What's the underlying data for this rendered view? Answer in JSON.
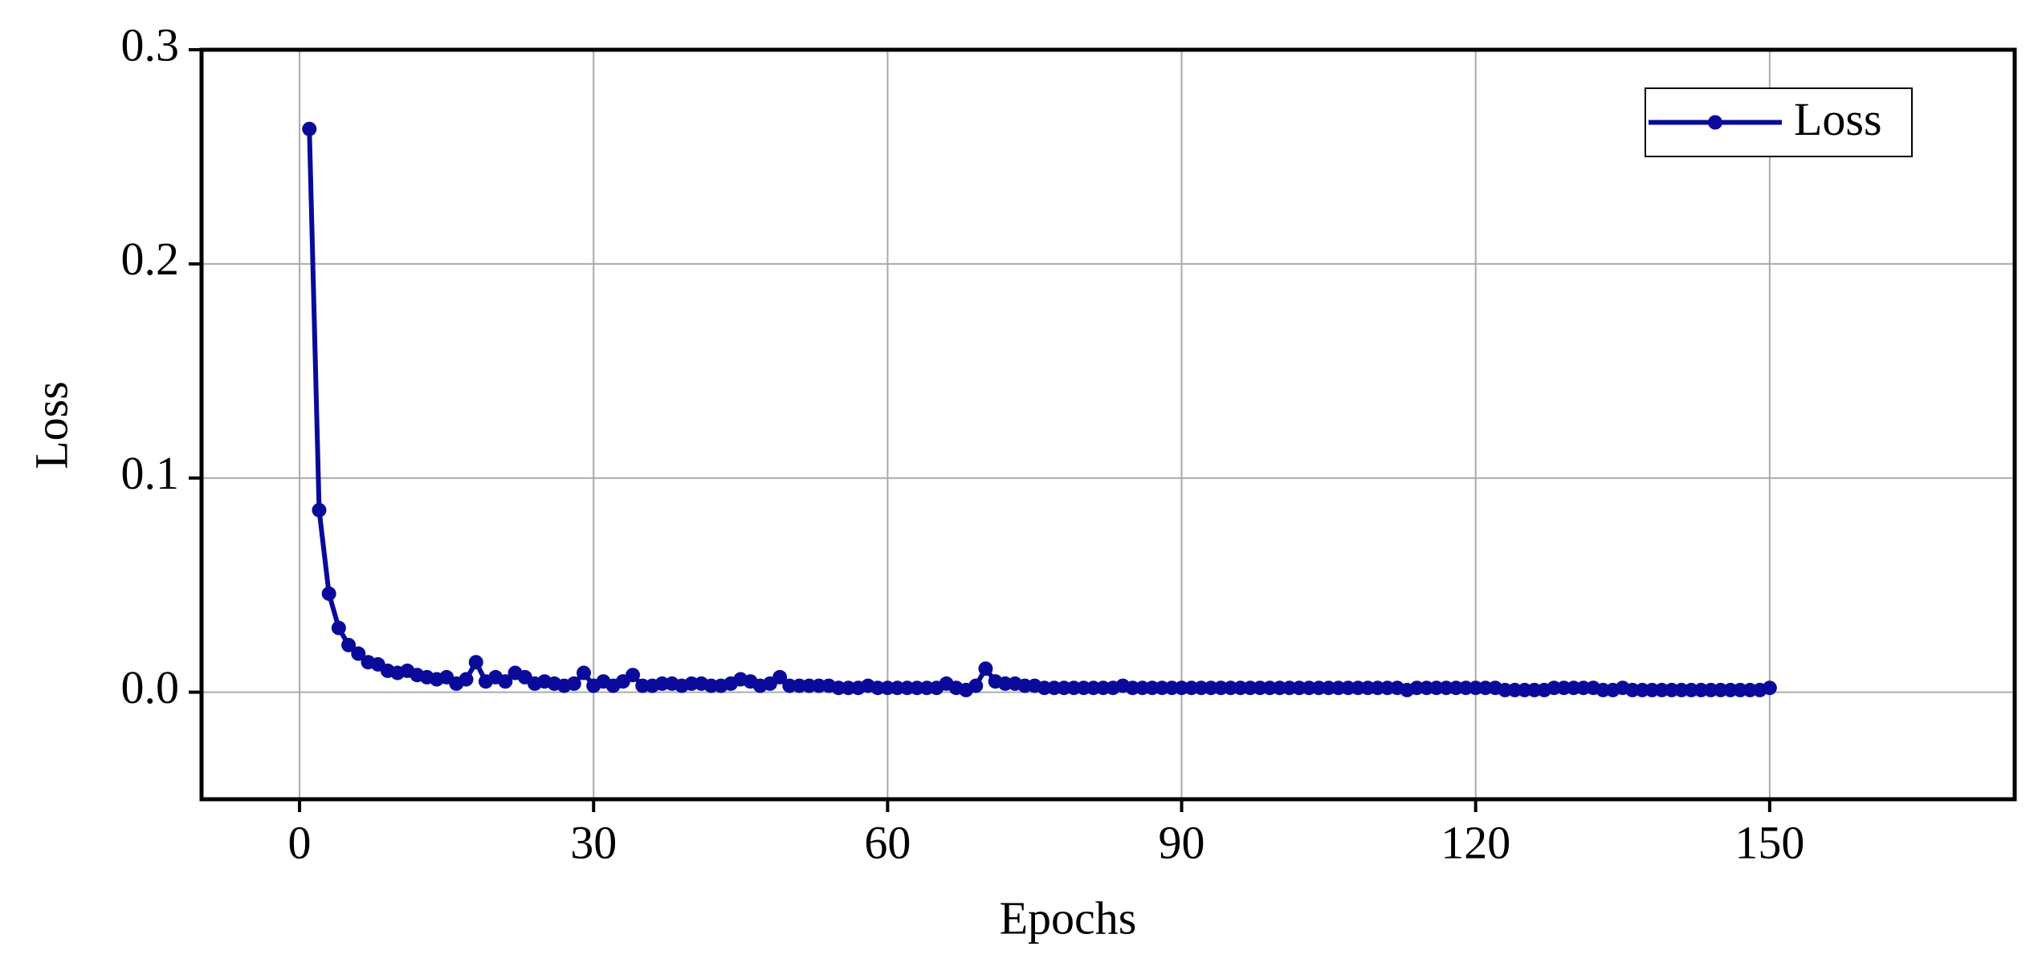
{
  "chart_data": {
    "type": "line",
    "x_label": "Epochs",
    "y_label": "Loss",
    "x": [
      1,
      2,
      3,
      4,
      5,
      6,
      7,
      8,
      9,
      10,
      11,
      12,
      13,
      14,
      15,
      16,
      17,
      18,
      19,
      20,
      21,
      22,
      23,
      24,
      25,
      26,
      27,
      28,
      29,
      30,
      31,
      32,
      33,
      34,
      35,
      36,
      37,
      38,
      39,
      40,
      41,
      42,
      43,
      44,
      45,
      46,
      47,
      48,
      49,
      50,
      51,
      52,
      53,
      54,
      55,
      56,
      57,
      58,
      59,
      60,
      61,
      62,
      63,
      64,
      65,
      66,
      67,
      68,
      69,
      70,
      71,
      72,
      73,
      74,
      75,
      76,
      77,
      78,
      79,
      80,
      81,
      82,
      83,
      84,
      85,
      86,
      87,
      88,
      89,
      90,
      91,
      92,
      93,
      94,
      95,
      96,
      97,
      98,
      99,
      100,
      101,
      102,
      103,
      104,
      105,
      106,
      107,
      108,
      109,
      110,
      111,
      112,
      113,
      114,
      115,
      116,
      117,
      118,
      119,
      120,
      121,
      122,
      123,
      124,
      125,
      126,
      127,
      128,
      129,
      130,
      131,
      132,
      133,
      134,
      135,
      136,
      137,
      138,
      139,
      140,
      141,
      142,
      143,
      144,
      145,
      146,
      147,
      148,
      149,
      150
    ],
    "series": [
      {
        "name": "Loss",
        "color": "#0a0a9a",
        "values": [
          0.263,
          0.085,
          0.046,
          0.03,
          0.022,
          0.018,
          0.014,
          0.013,
          0.01,
          0.009,
          0.01,
          0.008,
          0.007,
          0.006,
          0.007,
          0.004,
          0.006,
          0.014,
          0.005,
          0.007,
          0.005,
          0.009,
          0.007,
          0.004,
          0.005,
          0.004,
          0.003,
          0.004,
          0.009,
          0.003,
          0.005,
          0.003,
          0.005,
          0.008,
          0.003,
          0.003,
          0.004,
          0.004,
          0.003,
          0.004,
          0.004,
          0.003,
          0.003,
          0.004,
          0.006,
          0.005,
          0.003,
          0.004,
          0.007,
          0.003,
          0.003,
          0.003,
          0.003,
          0.003,
          0.002,
          0.002,
          0.002,
          0.003,
          0.002,
          0.002,
          0.002,
          0.002,
          0.002,
          0.002,
          0.002,
          0.004,
          0.002,
          0.001,
          0.003,
          0.011,
          0.005,
          0.004,
          0.004,
          0.003,
          0.003,
          0.002,
          0.002,
          0.002,
          0.002,
          0.002,
          0.002,
          0.002,
          0.002,
          0.003,
          0.002,
          0.002,
          0.002,
          0.002,
          0.002,
          0.002,
          0.002,
          0.002,
          0.002,
          0.002,
          0.002,
          0.002,
          0.002,
          0.002,
          0.002,
          0.002,
          0.002,
          0.002,
          0.002,
          0.002,
          0.002,
          0.002,
          0.002,
          0.002,
          0.002,
          0.002,
          0.002,
          0.002,
          0.001,
          0.002,
          0.002,
          0.002,
          0.002,
          0.002,
          0.002,
          0.002,
          0.002,
          0.002,
          0.001,
          0.001,
          0.001,
          0.001,
          0.001,
          0.002,
          0.002,
          0.002,
          0.002,
          0.002,
          0.001,
          0.001,
          0.002,
          0.001,
          0.001,
          0.001,
          0.001,
          0.001,
          0.001,
          0.001,
          0.001,
          0.001,
          0.001,
          0.001,
          0.001,
          0.001,
          0.001,
          0.002
        ]
      }
    ],
    "xlim": [
      -10,
      175
    ],
    "ylim": [
      -0.05,
      0.3
    ],
    "xticks": [
      0,
      30,
      60,
      90,
      120,
      150
    ],
    "yticks": [
      {
        "value": 0,
        "label": "0.0"
      },
      0.1,
      0.2,
      0.3
    ],
    "grid": true,
    "legend": "upper right"
  }
}
